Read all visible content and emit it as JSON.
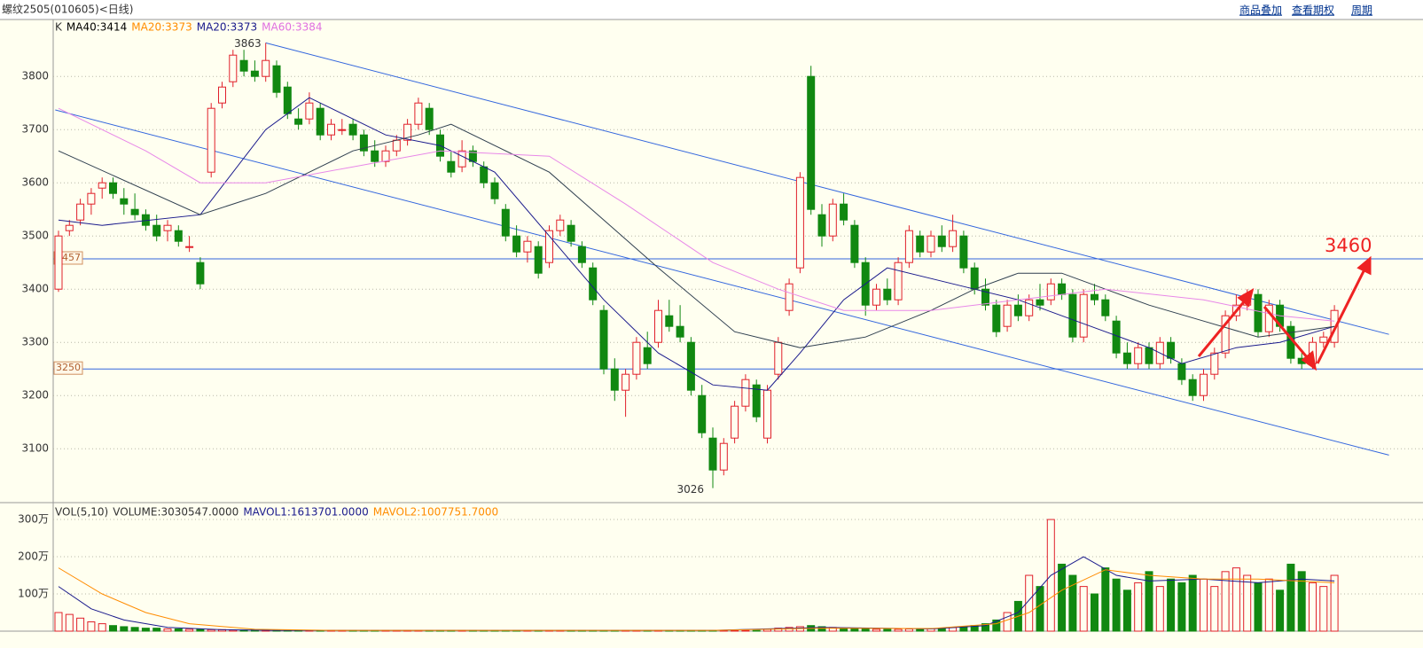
{
  "header": {
    "title": "螺纹2505(010605)<日线)",
    "links": [
      "商品叠加",
      "查看期权",
      "周期"
    ]
  },
  "chart_data": {
    "type": "candlestick",
    "legend": [
      {
        "label": "K",
        "color": "#333333"
      },
      {
        "label": "MA40:3414",
        "color": "#000000"
      },
      {
        "label": "MA20:3373",
        "color": "#ff8c00"
      },
      {
        "label": "MA20:3373",
        "color": "#1a1a8c"
      },
      {
        "label": "MA60:3384",
        "color": "#e070e0"
      }
    ],
    "ylim": [
      3002,
      3907
    ],
    "yticks": [
      3100,
      3200,
      3300,
      3400,
      3500,
      3600,
      3700,
      3800
    ],
    "up_color": "#e0202a",
    "down_color": "#118811",
    "candles": [
      [
        3400,
        3510,
        3395,
        3500
      ],
      [
        3510,
        3530,
        3500,
        3520
      ],
      [
        3530,
        3570,
        3520,
        3560
      ],
      [
        3560,
        3590,
        3540,
        3580
      ],
      [
        3590,
        3610,
        3570,
        3600
      ],
      [
        3600,
        3610,
        3570,
        3580
      ],
      [
        3570,
        3590,
        3540,
        3560
      ],
      [
        3550,
        3580,
        3530,
        3540
      ],
      [
        3540,
        3550,
        3510,
        3520
      ],
      [
        3520,
        3540,
        3490,
        3500
      ],
      [
        3510,
        3530,
        3490,
        3520
      ],
      [
        3510,
        3520,
        3480,
        3490
      ],
      [
        3480,
        3500,
        3470,
        3480
      ],
      [
        3450,
        3460,
        3400,
        3410
      ],
      [
        3620,
        3750,
        3610,
        3740
      ],
      [
        3750,
        3790,
        3740,
        3780
      ],
      [
        3790,
        3850,
        3780,
        3840
      ],
      [
        3830,
        3850,
        3800,
        3810
      ],
      [
        3810,
        3830,
        3790,
        3800
      ],
      [
        3800,
        3863,
        3790,
        3830
      ],
      [
        3820,
        3830,
        3760,
        3770
      ],
      [
        3780,
        3790,
        3720,
        3730
      ],
      [
        3720,
        3740,
        3700,
        3710
      ],
      [
        3720,
        3770,
        3710,
        3750
      ],
      [
        3740,
        3750,
        3680,
        3690
      ],
      [
        3690,
        3720,
        3680,
        3710
      ],
      [
        3700,
        3720,
        3690,
        3700
      ],
      [
        3710,
        3720,
        3680,
        3690
      ],
      [
        3690,
        3700,
        3650,
        3660
      ],
      [
        3660,
        3680,
        3630,
        3640
      ],
      [
        3640,
        3670,
        3630,
        3660
      ],
      [
        3660,
        3690,
        3650,
        3680
      ],
      [
        3680,
        3720,
        3670,
        3710
      ],
      [
        3710,
        3760,
        3700,
        3750
      ],
      [
        3740,
        3750,
        3690,
        3700
      ],
      [
        3690,
        3700,
        3640,
        3650
      ],
      [
        3640,
        3660,
        3610,
        3620
      ],
      [
        3630,
        3680,
        3620,
        3660
      ],
      [
        3660,
        3670,
        3630,
        3640
      ],
      [
        3630,
        3640,
        3590,
        3600
      ],
      [
        3600,
        3610,
        3560,
        3570
      ],
      [
        3550,
        3560,
        3490,
        3500
      ],
      [
        3500,
        3520,
        3460,
        3470
      ],
      [
        3470,
        3500,
        3450,
        3490
      ],
      [
        3480,
        3490,
        3420,
        3430
      ],
      [
        3450,
        3520,
        3440,
        3510
      ],
      [
        3510,
        3540,
        3500,
        3530
      ],
      [
        3520,
        3530,
        3480,
        3490
      ],
      [
        3480,
        3490,
        3440,
        3450
      ],
      [
        3440,
        3450,
        3370,
        3380
      ],
      [
        3360,
        3370,
        3240,
        3250
      ],
      [
        3250,
        3270,
        3190,
        3210
      ],
      [
        3210,
        3250,
        3160,
        3240
      ],
      [
        3240,
        3310,
        3230,
        3300
      ],
      [
        3290,
        3320,
        3250,
        3260
      ],
      [
        3300,
        3380,
        3290,
        3360
      ],
      [
        3350,
        3380,
        3320,
        3330
      ],
      [
        3330,
        3370,
        3300,
        3310
      ],
      [
        3300,
        3310,
        3200,
        3210
      ],
      [
        3200,
        3220,
        3120,
        3130
      ],
      [
        3120,
        3140,
        3026,
        3060
      ],
      [
        3060,
        3120,
        3050,
        3110
      ],
      [
        3120,
        3190,
        3110,
        3180
      ],
      [
        3180,
        3240,
        3170,
        3230
      ],
      [
        3220,
        3230,
        3150,
        3160
      ],
      [
        3120,
        3220,
        3110,
        3210
      ],
      [
        3240,
        3310,
        3230,
        3300
      ],
      [
        3360,
        3420,
        3350,
        3410
      ],
      [
        3440,
        3620,
        3430,
        3610
      ],
      [
        3800,
        3820,
        3540,
        3550
      ],
      [
        3540,
        3560,
        3480,
        3500
      ],
      [
        3500,
        3570,
        3490,
        3560
      ],
      [
        3560,
        3580,
        3520,
        3530
      ],
      [
        3520,
        3530,
        3440,
        3450
      ],
      [
        3450,
        3460,
        3350,
        3370
      ],
      [
        3370,
        3410,
        3360,
        3400
      ],
      [
        3400,
        3420,
        3370,
        3380
      ],
      [
        3380,
        3460,
        3370,
        3450
      ],
      [
        3450,
        3520,
        3440,
        3510
      ],
      [
        3500,
        3510,
        3460,
        3470
      ],
      [
        3470,
        3510,
        3460,
        3500
      ],
      [
        3500,
        3520,
        3470,
        3480
      ],
      [
        3480,
        3540,
        3470,
        3510
      ],
      [
        3500,
        3510,
        3430,
        3440
      ],
      [
        3440,
        3450,
        3390,
        3400
      ],
      [
        3400,
        3420,
        3360,
        3370
      ],
      [
        3370,
        3380,
        3310,
        3320
      ],
      [
        3330,
        3380,
        3320,
        3370
      ],
      [
        3370,
        3390,
        3340,
        3350
      ],
      [
        3350,
        3390,
        3340,
        3380
      ],
      [
        3380,
        3410,
        3360,
        3370
      ],
      [
        3380,
        3420,
        3370,
        3410
      ],
      [
        3410,
        3420,
        3380,
        3390
      ],
      [
        3390,
        3400,
        3300,
        3310
      ],
      [
        3310,
        3400,
        3300,
        3390
      ],
      [
        3390,
        3410,
        3370,
        3380
      ],
      [
        3380,
        3390,
        3340,
        3350
      ],
      [
        3340,
        3350,
        3270,
        3280
      ],
      [
        3280,
        3300,
        3250,
        3260
      ],
      [
        3260,
        3300,
        3250,
        3290
      ],
      [
        3290,
        3300,
        3250,
        3260
      ],
      [
        3260,
        3310,
        3250,
        3300
      ],
      [
        3300,
        3310,
        3260,
        3270
      ],
      [
        3260,
        3270,
        3220,
        3230
      ],
      [
        3230,
        3240,
        3190,
        3200
      ],
      [
        3200,
        3250,
        3190,
        3240
      ],
      [
        3240,
        3290,
        3230,
        3280
      ],
      [
        3280,
        3360,
        3270,
        3350
      ],
      [
        3350,
        3390,
        3340,
        3370
      ],
      [
        3370,
        3400,
        3360,
        3390
      ],
      [
        3390,
        3400,
        3310,
        3320
      ],
      [
        3320,
        3380,
        3310,
        3370
      ],
      [
        3370,
        3380,
        3320,
        3330
      ],
      [
        3330,
        3340,
        3260,
        3270
      ],
      [
        3270,
        3280,
        3250,
        3260
      ],
      [
        3260,
        3310,
        3250,
        3300
      ],
      [
        3300,
        3320,
        3290,
        3310
      ],
      [
        3300,
        3370,
        3290,
        3360
      ]
    ],
    "ma_lines": [
      {
        "color": "#1a1a8c",
        "x": [
          0,
          4,
          13,
          19,
          23,
          27,
          30,
          35,
          40,
          45,
          50,
          55,
          60,
          65,
          68,
          72,
          76,
          80,
          84,
          88,
          92,
          96,
          100,
          103,
          108,
          112,
          117
        ],
        "values": [
          3530,
          3520,
          3540,
          3700,
          3760,
          3720,
          3690,
          3670,
          3620,
          3500,
          3380,
          3280,
          3220,
          3210,
          3280,
          3380,
          3440,
          3420,
          3400,
          3380,
          3350,
          3320,
          3290,
          3260,
          3290,
          3300,
          3330
        ]
      },
      {
        "color": "#2f3f4f",
        "x": [
          0,
          13,
          19,
          27,
          33,
          36,
          45,
          55,
          62,
          68,
          74,
          80,
          84,
          88,
          92,
          96,
          100,
          105,
          110,
          117
        ],
        "values": [
          3660,
          3540,
          3580,
          3660,
          3690,
          3710,
          3620,
          3440,
          3320,
          3290,
          3310,
          3360,
          3400,
          3430,
          3430,
          3400,
          3370,
          3340,
          3310,
          3330
        ]
      },
      {
        "color": "#e888e8",
        "x": [
          0,
          8,
          13,
          19,
          27,
          35,
          45,
          52,
          60,
          66,
          72,
          80,
          88,
          96,
          105,
          112,
          117
        ],
        "values": [
          3740,
          3660,
          3600,
          3600,
          3630,
          3660,
          3650,
          3560,
          3450,
          3400,
          3360,
          3360,
          3380,
          3400,
          3380,
          3350,
          3340
        ]
      }
    ],
    "trend_lines": [
      {
        "color": "#3366dd",
        "points": [
          [
            19,
            3863
          ],
          [
            122,
            3315
          ]
        ]
      },
      {
        "color": "#3366dd",
        "points": [
          [
            -0.3,
            3737
          ],
          [
            122,
            3088
          ]
        ]
      }
    ],
    "hlines": [
      3457,
      3250
    ],
    "target_label": "3460",
    "volume": {
      "legend": [
        {
          "label": "VOL(5,10)",
          "color": "#333333"
        },
        {
          "label": "VOLUME:3030547.0000",
          "color": "#333333"
        },
        {
          "label": "MAVOL1:1613701.0000",
          "color": "#1a1a8c"
        },
        {
          "label": "MAVOL2:1007751.7000",
          "color": "#ff8c00"
        }
      ],
      "ylim": [
        0,
        343
      ],
      "yticks": [
        {
          "value": 100,
          "label": "100万"
        },
        {
          "value": 200,
          "label": "200万"
        },
        {
          "value": 300,
          "label": "300万"
        }
      ],
      "values": [
        50,
        45,
        35,
        25,
        20,
        15,
        12,
        10,
        8,
        8,
        6,
        6,
        5,
        5,
        4,
        4,
        3,
        3,
        3,
        3,
        2,
        2,
        2,
        2,
        2,
        2,
        2,
        2,
        2,
        2,
        2,
        2,
        2,
        2,
        2,
        2,
        2,
        2,
        2,
        2,
        2,
        2,
        2,
        2,
        2,
        2,
        2,
        2,
        2,
        2,
        2,
        2,
        2,
        2,
        2,
        2,
        2,
        2,
        2,
        2,
        2,
        2,
        2,
        2,
        2,
        5,
        8,
        10,
        12,
        15,
        12,
        10,
        8,
        6,
        6,
        5,
        5,
        5,
        6,
        6,
        7,
        8,
        10,
        12,
        15,
        20,
        30,
        50,
        80,
        150,
        120,
        300,
        180,
        150,
        120,
        100,
        170,
        140,
        110,
        130,
        160,
        120,
        140,
        130,
        150,
        140,
        120,
        160,
        170,
        150,
        130,
        140,
        110,
        180,
        160,
        130,
        120,
        150
      ],
      "ma_lines": [
        {
          "color": "#1a1a8c",
          "x": [
            0,
            3,
            6,
            10,
            15,
            20,
            60,
            70,
            80,
            85,
            88,
            91,
            94,
            97,
            100,
            105,
            110,
            114,
            117
          ],
          "values": [
            120,
            60,
            30,
            10,
            4,
            2,
            2,
            10,
            6,
            15,
            50,
            150,
            200,
            150,
            135,
            140,
            130,
            140,
            135
          ]
        },
        {
          "color": "#ff8c00",
          "x": [
            0,
            4,
            8,
            12,
            18,
            25,
            60,
            70,
            80,
            86,
            89,
            92,
            96,
            100,
            105,
            110,
            117
          ],
          "values": [
            170,
            100,
            50,
            20,
            5,
            2,
            2,
            8,
            7,
            20,
            50,
            110,
            165,
            150,
            140,
            140,
            130
          ]
        }
      ]
    }
  }
}
